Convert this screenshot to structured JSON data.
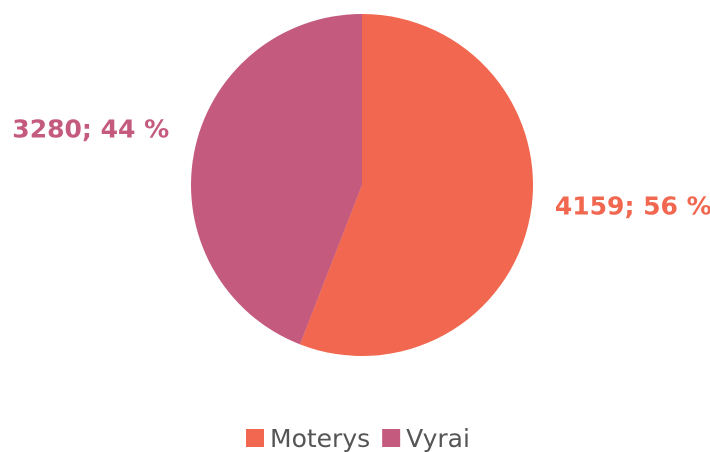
{
  "chart_data": {
    "type": "pie",
    "categories": [
      "Moterys",
      "Vyrai"
    ],
    "values": [
      4159,
      3280
    ],
    "value_labels": [
      "4159; 56 %",
      "3280; 44 %"
    ],
    "colors": [
      "#f2674f",
      "#c45a7d"
    ],
    "legend": "bottom"
  }
}
